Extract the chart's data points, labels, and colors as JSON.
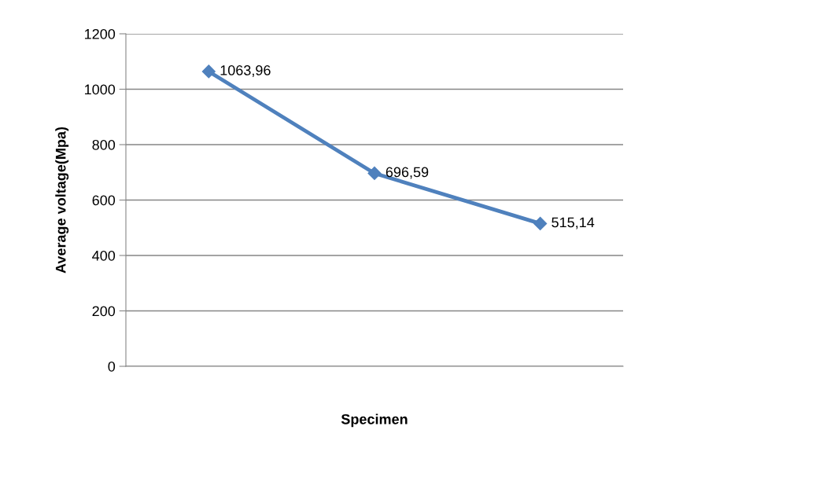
{
  "chart_data": {
    "type": "line",
    "xlabel": "Specimen",
    "ylabel": "Average voltage(Mpa)",
    "categories": [
      null,
      null,
      null
    ],
    "series": [
      {
        "color": "#4f81bd",
        "values": [
          1063.96,
          696.59,
          515.14
        ],
        "value_labels": [
          "1063,96",
          "696,59",
          "515,14"
        ]
      }
    ],
    "ylim": [
      0,
      1200
    ],
    "yticks": [
      0,
      200,
      400,
      600,
      800,
      1000,
      1200
    ],
    "grid": "y",
    "marker": "diamond",
    "line_style": "solid",
    "legend": false
  }
}
